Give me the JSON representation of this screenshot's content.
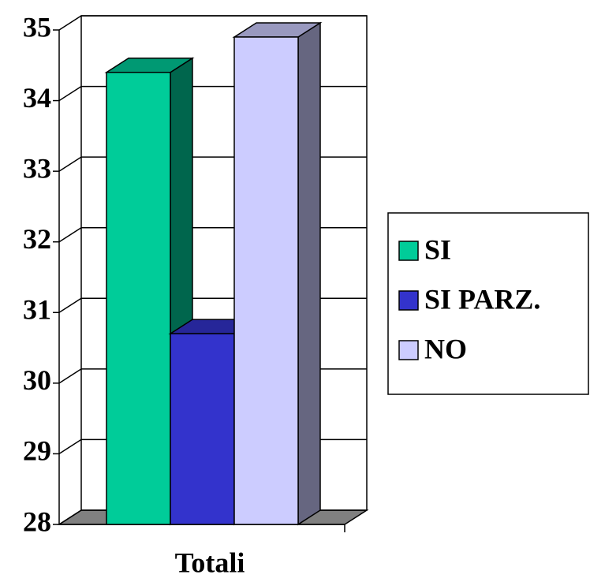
{
  "chart_data": {
    "type": "bar3d",
    "categories": [
      "Totali"
    ],
    "series": [
      {
        "name": "SI",
        "color": "#00cc99",
        "values": [
          34.4
        ]
      },
      {
        "name": "SI PARZ.",
        "color": "#3333cc",
        "values": [
          30.7
        ]
      },
      {
        "name": "NO",
        "color": "#ccccff",
        "values": [
          34.9
        ]
      }
    ],
    "ylim": [
      28,
      35
    ],
    "yticks": [
      28,
      29,
      30,
      31,
      32,
      33,
      34,
      35
    ],
    "grid": true,
    "legend": "right"
  }
}
